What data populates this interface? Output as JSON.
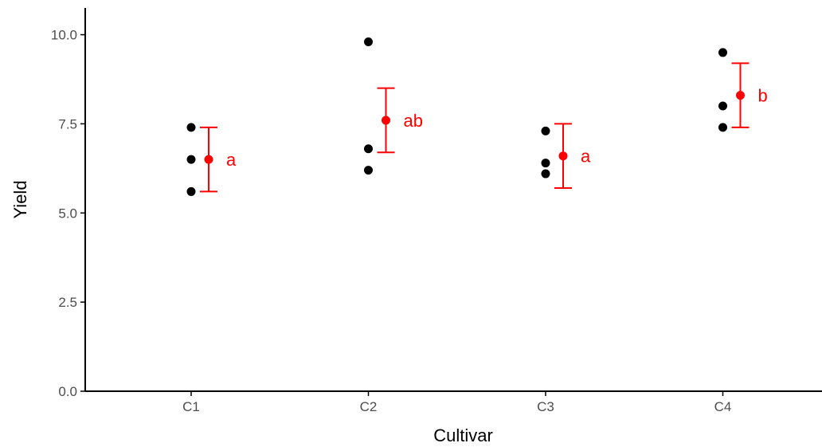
{
  "chart_data": {
    "type": "scatter",
    "xlabel": "Cultivar",
    "ylabel": "Yield",
    "categories": [
      "C1",
      "C2",
      "C3",
      "C4"
    ],
    "ylim": [
      0,
      10.75
    ],
    "yticks": [
      0.0,
      2.5,
      5.0,
      7.5,
      10.0
    ],
    "ytick_labels": [
      "0.0",
      "2.5",
      "5.0",
      "7.5",
      "10.0"
    ],
    "grid": false,
    "legend": "none",
    "observations": [
      {
        "category": "C1",
        "values": [
          7.4,
          6.5,
          5.6
        ]
      },
      {
        "category": "C2",
        "values": [
          9.8,
          6.8,
          6.2
        ]
      },
      {
        "category": "C3",
        "values": [
          7.3,
          6.4,
          6.1
        ]
      },
      {
        "category": "C4",
        "values": [
          9.5,
          8.0,
          7.4
        ]
      }
    ],
    "summary": [
      {
        "category": "C1",
        "mean": 6.5,
        "lower": 5.6,
        "upper": 7.4,
        "group_letter": "a"
      },
      {
        "category": "C2",
        "mean": 7.6,
        "lower": 6.7,
        "upper": 8.5,
        "group_letter": "ab"
      },
      {
        "category": "C3",
        "mean": 6.6,
        "lower": 5.7,
        "upper": 7.5,
        "group_letter": "a"
      },
      {
        "category": "C4",
        "mean": 8.3,
        "lower": 7.4,
        "upper": 9.2,
        "group_letter": "b"
      }
    ],
    "colors": {
      "observation": "#000000",
      "summary": "#ff0000",
      "axis": "#000000",
      "tick_label": "#4d4d4d"
    }
  }
}
